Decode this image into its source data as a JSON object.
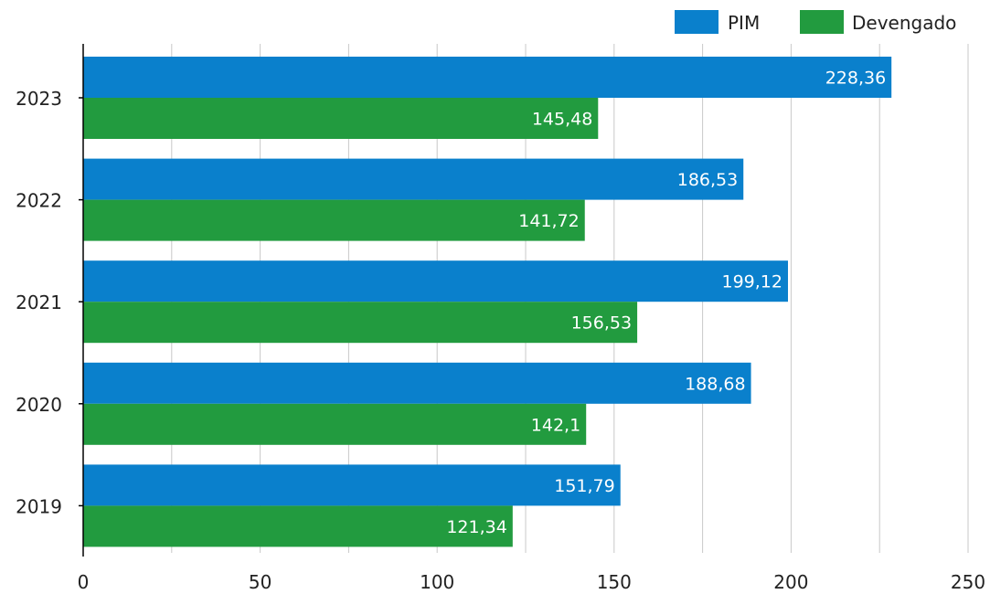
{
  "chart_data": {
    "type": "bar",
    "orientation": "horizontal",
    "categories": [
      "2023",
      "2022",
      "2021",
      "2020",
      "2019"
    ],
    "series": [
      {
        "name": "PIM",
        "color": "#0a80cc",
        "values": [
          228.36,
          186.53,
          199.12,
          188.68,
          151.79
        ]
      },
      {
        "name": "Devengado",
        "color": "#229b3f",
        "values": [
          145.48,
          141.72,
          156.53,
          142.1,
          121.34
        ]
      }
    ],
    "value_labels": [
      [
        "228,36",
        "186,53",
        "199,12",
        "188,68",
        "151,79"
      ],
      [
        "145,48",
        "141,72",
        "156,53",
        "142,1",
        "121,34"
      ]
    ],
    "x_ticks": [
      "0",
      "50",
      "100",
      "150",
      "200",
      "250"
    ],
    "xlim": [
      0,
      250
    ],
    "grid": true,
    "legend": "top-right"
  },
  "colors": {
    "grid": "#c8c8c8",
    "axis": "#000000",
    "label_text": "#ffffff",
    "tick_text": "#222222"
  }
}
